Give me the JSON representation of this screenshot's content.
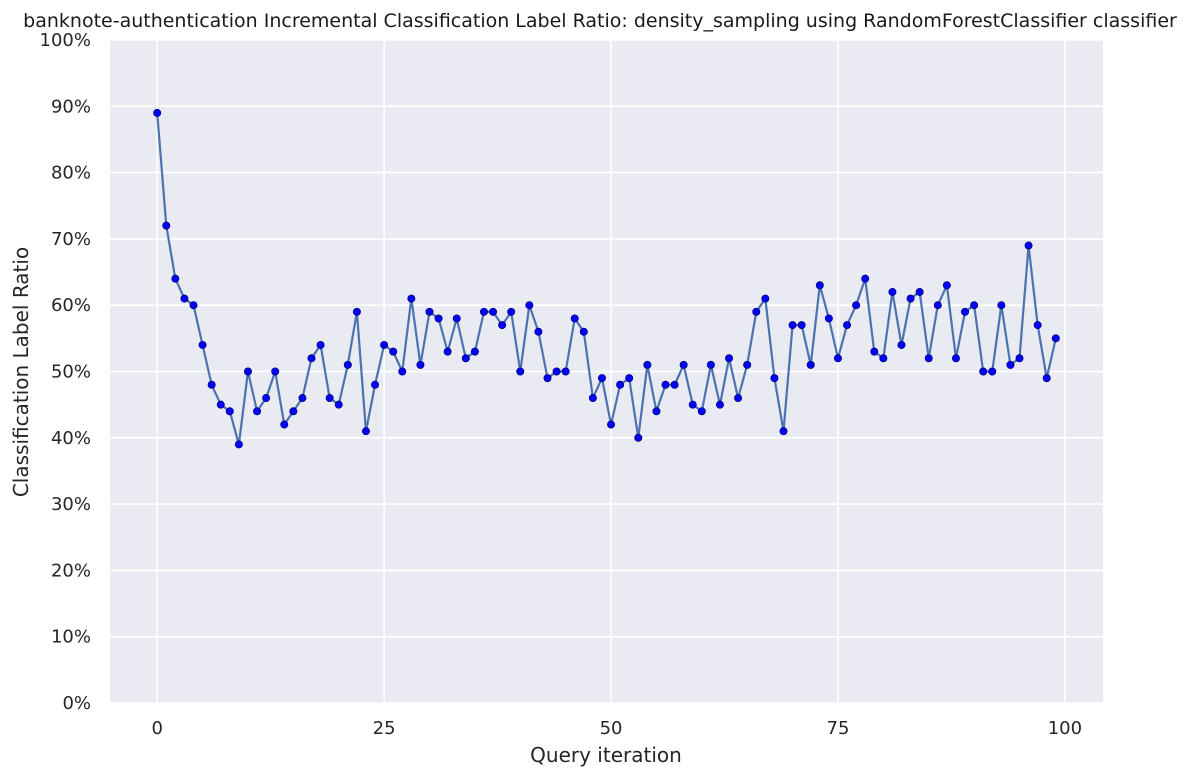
{
  "chart_data": {
    "type": "line",
    "title": "banknote-authentication Incremental Classification Label Ratio: density_sampling using RandomForestClassifier classifier",
    "xlabel": "Query iteration",
    "ylabel": "Classification Label Ratio",
    "xlim": [
      -5.2,
      104.2
    ],
    "ylim": [
      0,
      1
    ],
    "x_ticks": [
      0,
      25,
      50,
      75,
      100
    ],
    "x_tick_labels": [
      "0",
      "25",
      "50",
      "75",
      "100"
    ],
    "y_ticks": [
      0,
      0.1,
      0.2,
      0.3,
      0.4,
      0.5,
      0.6,
      0.7,
      0.8,
      0.9,
      1.0
    ],
    "y_tick_labels": [
      "0%",
      "10%",
      "20%",
      "30%",
      "40%",
      "50%",
      "60%",
      "70%",
      "80%",
      "90%",
      "100%"
    ],
    "grid": true,
    "style": {
      "background": "#eaeaf2",
      "grid_color": "#ffffff",
      "line_color": "#4c72b0",
      "marker_color": "#0000ff",
      "marker_edge": "#000080"
    },
    "series": [
      {
        "x": [
          0,
          1,
          2,
          3,
          4,
          5,
          6,
          7,
          8,
          9,
          10,
          11,
          12,
          13,
          14,
          15,
          16,
          17,
          18,
          19,
          20,
          21,
          22,
          23,
          24,
          25,
          26,
          27,
          28,
          29,
          30,
          31,
          32,
          33,
          34,
          35,
          36,
          37,
          38,
          39,
          40,
          41,
          42,
          43,
          44,
          45,
          46,
          47,
          48,
          49,
          50,
          51,
          52,
          53,
          54,
          55,
          56,
          57,
          58,
          59,
          60,
          61,
          62,
          63,
          64,
          65,
          66,
          67,
          68,
          69,
          70,
          71,
          72,
          73,
          74,
          75,
          76,
          77,
          78,
          79,
          80,
          81,
          82,
          83,
          84,
          85,
          86,
          87,
          88,
          89,
          90,
          91,
          92,
          93,
          94,
          95,
          96,
          97,
          98,
          99
        ],
        "y": [
          0.89,
          0.72,
          0.64,
          0.61,
          0.6,
          0.54,
          0.48,
          0.45,
          0.44,
          0.39,
          0.5,
          0.44,
          0.46,
          0.5,
          0.42,
          0.44,
          0.46,
          0.52,
          0.54,
          0.46,
          0.45,
          0.51,
          0.59,
          0.41,
          0.48,
          0.54,
          0.53,
          0.5,
          0.61,
          0.51,
          0.59,
          0.58,
          0.53,
          0.58,
          0.52,
          0.53,
          0.59,
          0.59,
          0.57,
          0.59,
          0.5,
          0.6,
          0.56,
          0.49,
          0.5,
          0.5,
          0.58,
          0.56,
          0.46,
          0.49,
          0.42,
          0.48,
          0.49,
          0.4,
          0.51,
          0.44,
          0.48,
          0.48,
          0.51,
          0.45,
          0.44,
          0.51,
          0.45,
          0.52,
          0.46,
          0.51,
          0.59,
          0.61,
          0.49,
          0.41,
          0.57,
          0.57,
          0.51,
          0.63,
          0.58,
          0.52,
          0.57,
          0.6,
          0.64,
          0.53,
          0.52,
          0.62,
          0.54,
          0.61,
          0.62,
          0.52,
          0.6,
          0.63,
          0.52,
          0.59,
          0.6,
          0.5,
          0.5,
          0.6,
          0.51,
          0.52,
          0.69,
          0.57,
          0.49,
          0.55
        ]
      }
    ]
  }
}
